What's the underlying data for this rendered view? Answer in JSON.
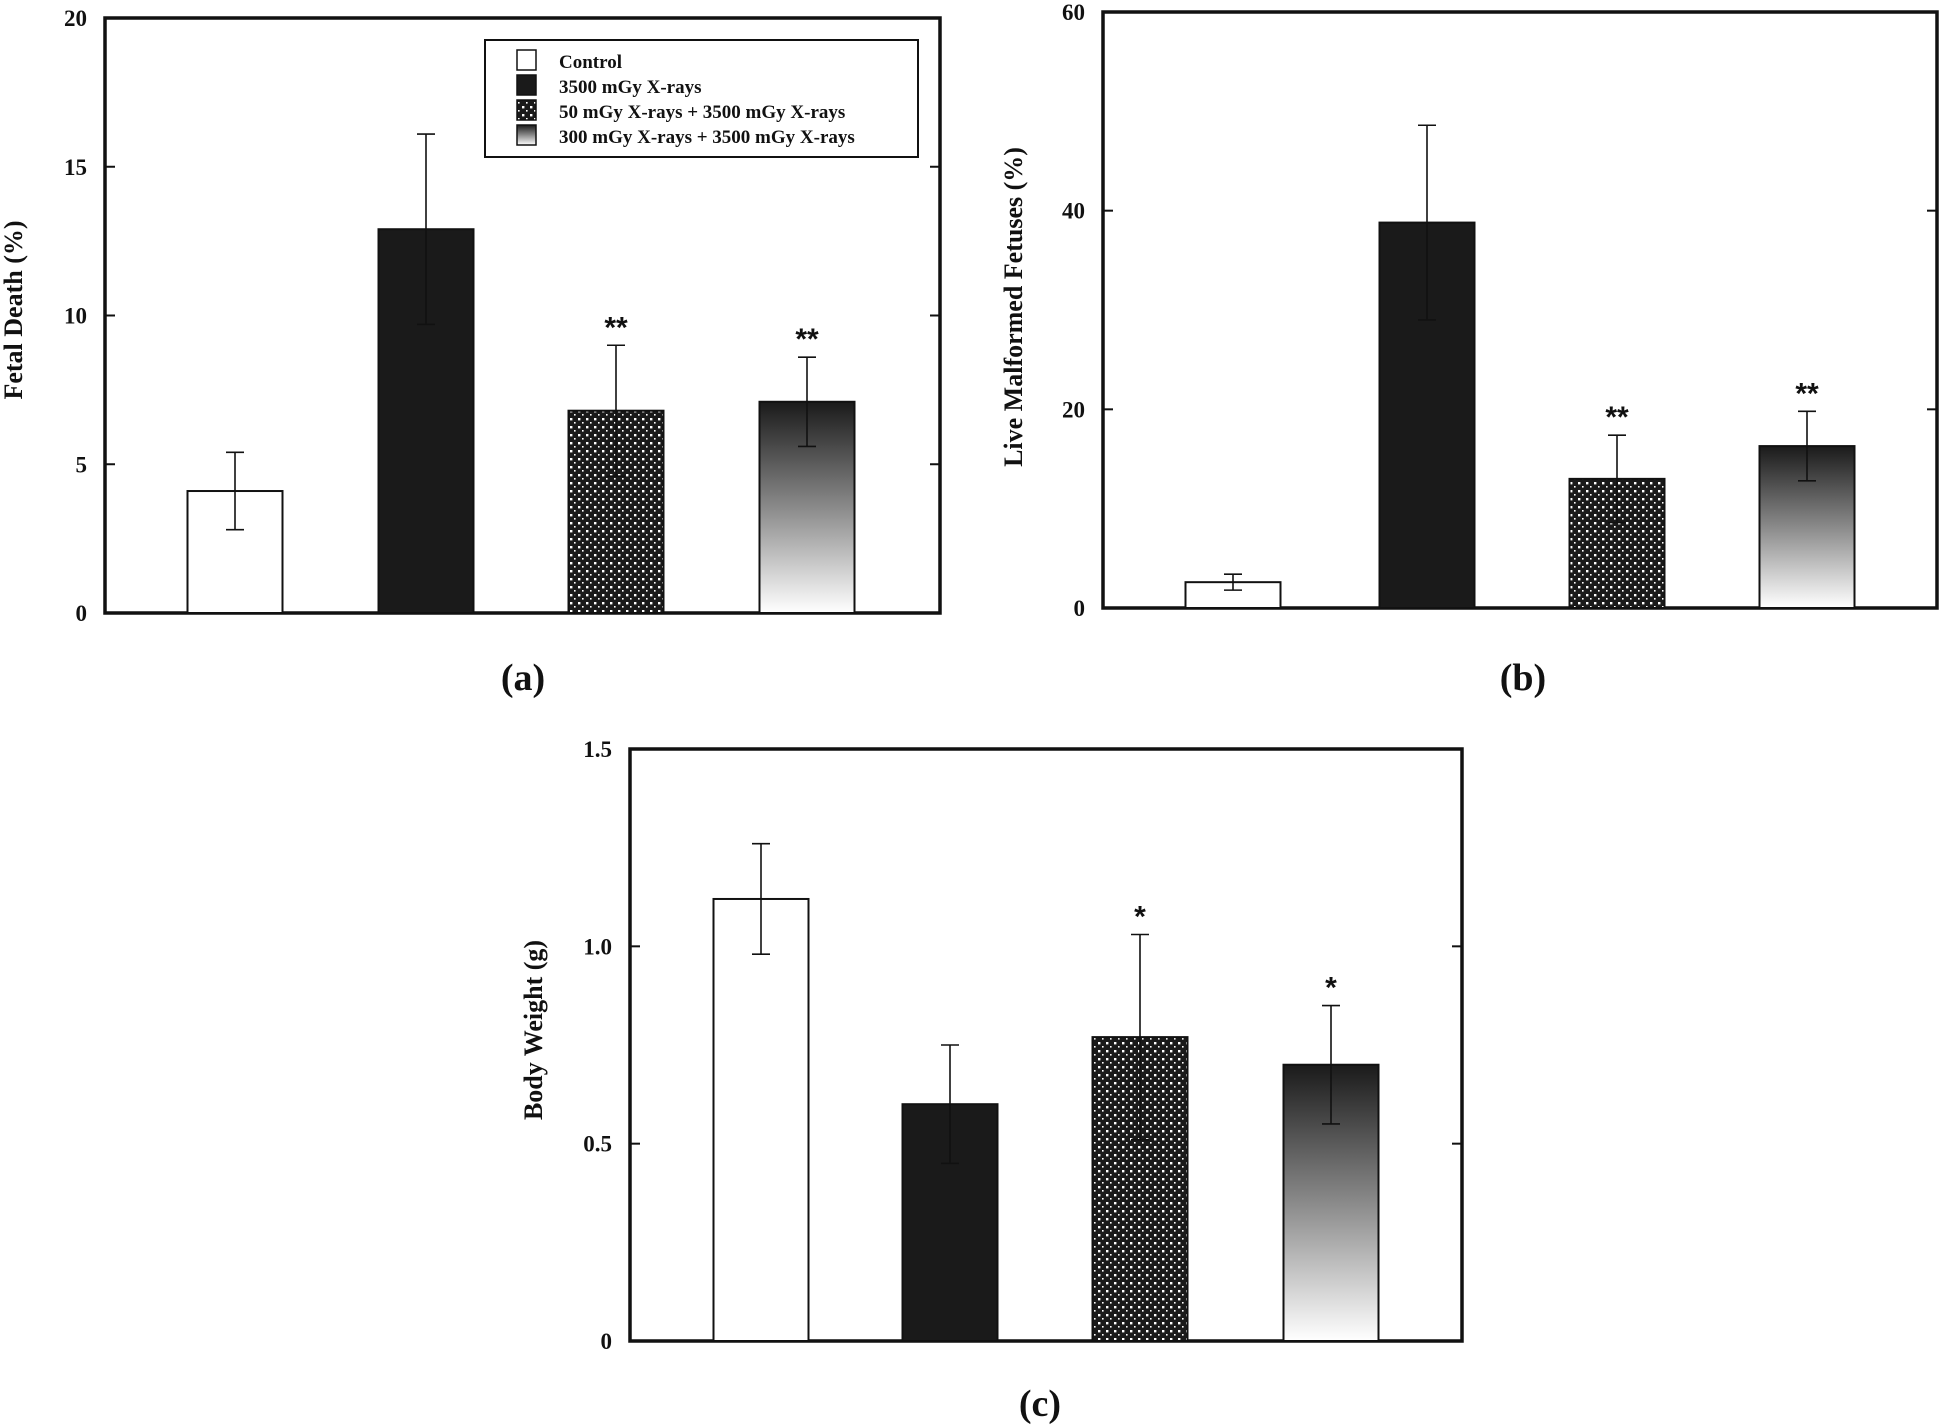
{
  "legend": {
    "entries": [
      {
        "label": "Control",
        "style": "white"
      },
      {
        "label": "3500 mGy X-rays",
        "style": "black"
      },
      {
        "label": "50 mGy X-rays + 3500 mGy X-rays",
        "style": "dotted"
      },
      {
        "label": "300 mGy X-rays + 3500 mGy X-rays",
        "style": "gradient"
      }
    ]
  },
  "chart_data": [
    {
      "type": "bar",
      "panel": "(a)",
      "title": "",
      "xlabel": "",
      "ylabel": "Fetal Death (%)",
      "ylim": [
        0,
        20
      ],
      "yticks": [
        0,
        5,
        10,
        15,
        20
      ],
      "ytick_labels": [
        "0",
        "5",
        "10",
        "15",
        "20"
      ],
      "categories": [
        "Control",
        "3500 mGy X-rays",
        "50 mGy X-rays + 3500 mGy X-rays",
        "300 mGy X-rays + 3500 mGy X-rays"
      ],
      "values": [
        4.1,
        12.9,
        6.8,
        7.1
      ],
      "errors": [
        1.3,
        3.2,
        2.2,
        1.5
      ],
      "annotations": [
        "",
        "",
        "**",
        "**"
      ],
      "legend": "top-right"
    },
    {
      "type": "bar",
      "panel": "(b)",
      "title": "",
      "xlabel": "",
      "ylabel": "Live Malformed Fetuses (%)",
      "ylim": [
        0,
        60
      ],
      "yticks": [
        0,
        20,
        40,
        60
      ],
      "ytick_labels": [
        "0",
        "20",
        "40",
        "60"
      ],
      "categories": [
        "Control",
        "3500 mGy X-rays",
        "50 mGy X-rays + 3500 mGy X-rays",
        "300 mGy X-rays + 3500 mGy X-rays"
      ],
      "values": [
        2.6,
        38.8,
        13.0,
        16.3
      ],
      "errors": [
        0.8,
        9.8,
        4.4,
        3.5
      ],
      "annotations": [
        "",
        "",
        "**",
        "**"
      ]
    },
    {
      "type": "bar",
      "panel": "(c)",
      "title": "",
      "xlabel": "",
      "ylabel": "Body Weight (g)",
      "ylim": [
        0,
        1.5
      ],
      "yticks": [
        0,
        0.5,
        1.0,
        1.5
      ],
      "ytick_labels": [
        "0",
        "0.5",
        "1.0",
        "1.5"
      ],
      "categories": [
        "Control",
        "3500 mGy X-rays",
        "50 mGy X-rays + 3500 mGy X-rays",
        "300 mGy X-rays + 3500 mGy X-rays"
      ],
      "values": [
        1.12,
        0.6,
        0.77,
        0.7
      ],
      "errors": [
        0.14,
        0.15,
        0.26,
        0.15
      ],
      "annotations": [
        "",
        "",
        "*",
        "*"
      ]
    }
  ]
}
